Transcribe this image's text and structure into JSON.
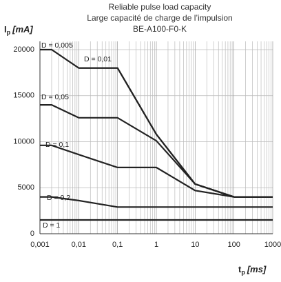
{
  "chart_data": {
    "type": "line",
    "title": [
      "Reliable pulse load capacity",
      "Large capacité de charge de l’impulsion",
      "BE-A100-F0-K"
    ],
    "y_label": {
      "symbol": "I",
      "sub": "p",
      "unit": "[mA]"
    },
    "x_label": {
      "symbol": "t",
      "sub": "p",
      "unit": "[ms]"
    },
    "xscale": "log",
    "x": [
      0.001,
      0.002,
      0.01,
      0.1,
      1,
      10,
      100,
      1000
    ],
    "xlim": [
      0.001,
      1000
    ],
    "xticks": [
      {
        "value": 0.001,
        "label": "0,001"
      },
      {
        "value": 0.01,
        "label": "0,01"
      },
      {
        "value": 0.1,
        "label": "0,1"
      },
      1,
      10,
      100,
      1000
    ],
    "ylim": [
      0,
      20000
    ],
    "yticks": [
      0,
      5000,
      10000,
      15000,
      20000
    ],
    "grid": true,
    "series": [
      {
        "name": "D = 0,005",
        "color": "#222222",
        "values": [
          20000,
          20000,
          18000,
          18000,
          10800,
          5400,
          4000,
          4000
        ]
      },
      {
        "name": "D = 0,01",
        "color": "#222222",
        "values": [
          null,
          null,
          18000,
          18000,
          10800,
          5400,
          4000,
          4000
        ]
      },
      {
        "name": "D = 0,05",
        "color": "#222222",
        "values": [
          14000,
          14000,
          12600,
          12600,
          10100,
          5400,
          4000,
          4000
        ]
      },
      {
        "name": "D = 0,1",
        "color": "#222222",
        "values": [
          9600,
          9600,
          8600,
          7200,
          7200,
          4700,
          4000,
          4000
        ]
      },
      {
        "name": "D = 0,2",
        "color": "#222222",
        "values": [
          4000,
          4000,
          3600,
          2900,
          2900,
          2900,
          2900,
          2900
        ]
      },
      {
        "name": "D = 1",
        "color": "#222222",
        "values": [
          1500,
          1500,
          1500,
          1500,
          1500,
          1500,
          1500,
          1500
        ]
      }
    ]
  }
}
